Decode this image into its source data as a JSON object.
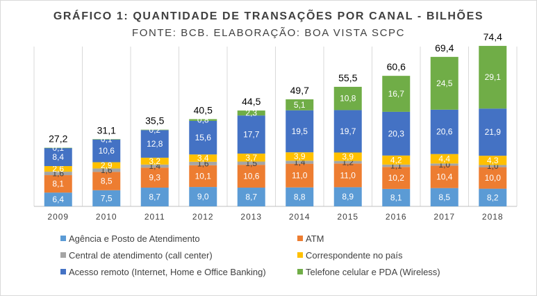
{
  "chart_data": {
    "type": "bar",
    "stacked": true,
    "title": "GRÁFICO 1: QUANTIDADE DE TRANSAÇÕES POR CANAL - BILHÕES",
    "subtitle": "FONTE: BCB. ELABORAÇÃO: BOA VISTA SCPC",
    "categories": [
      "2009",
      "2010",
      "2011",
      "2012",
      "2013",
      "2014",
      "2015",
      "2016",
      "2017",
      "2018"
    ],
    "totals": [
      "27,2",
      "31,1",
      "35,5",
      "40,5",
      "44,5",
      "49,7",
      "55,5",
      "60,6",
      "69,4",
      "74,4"
    ],
    "total_values": [
      27.2,
      31.1,
      35.5,
      40.5,
      44.5,
      49.7,
      55.5,
      60.6,
      69.4,
      74.4
    ],
    "ylim": [
      0,
      80
    ],
    "grid": true,
    "legend_position": "bottom",
    "series": [
      {
        "name": "Agência e Posto de Atendimento",
        "color": "#5b9bd5",
        "values": [
          6.4,
          7.5,
          8.7,
          9.0,
          8.7,
          8.8,
          8.9,
          8.1,
          8.5,
          8.2
        ],
        "labels": [
          "6,4",
          "7,5",
          "8,7",
          "9,0",
          "8,7",
          "8,8",
          "8,9",
          "8,1",
          "8,5",
          "8,2"
        ]
      },
      {
        "name": "ATM",
        "color": "#ed7d31",
        "values": [
          8.1,
          8.5,
          9.3,
          10.1,
          10.6,
          11.0,
          11.0,
          10.2,
          10.4,
          10.0
        ],
        "labels": [
          "8,1",
          "8,5",
          "9,3",
          "10,1",
          "10,6",
          "11,0",
          "11,0",
          "10,2",
          "10,4",
          "10,0"
        ]
      },
      {
        "name": "Central de atendimento (call center)",
        "color": "#a5a5a5",
        "values": [
          1.6,
          1.6,
          1.4,
          1.6,
          1.5,
          1.4,
          1.2,
          1.1,
          1.0,
          1.0
        ],
        "labels": [
          "1,6",
          "1,6",
          "1,4",
          "1,6",
          "1,5",
          "1,4",
          "1,2",
          "1,1",
          "1,0",
          "1,0"
        ]
      },
      {
        "name": "Correspondente no país",
        "color": "#ffc000",
        "values": [
          2.6,
          2.9,
          3.2,
          3.4,
          3.7,
          3.9,
          3.9,
          4.2,
          4.4,
          4.3
        ],
        "labels": [
          "2,6",
          "2,9",
          "3,2",
          "3,4",
          "3,7",
          "3,9",
          "3,9",
          "4,2",
          "4,4",
          "4,3"
        ]
      },
      {
        "name": "Acesso remoto (Internet, Home e Office Banking)",
        "color": "#4472c4",
        "values": [
          8.4,
          10.6,
          12.8,
          15.6,
          17.7,
          19.5,
          19.7,
          20.3,
          20.6,
          21.9
        ],
        "labels": [
          "8,4",
          "10,6",
          "12,8",
          "15,6",
          "17,7",
          "19,5",
          "19,7",
          "20,3",
          "20,6",
          "21,9"
        ]
      },
      {
        "name": "Telefone celular e PDA (Wireless)",
        "color": "#70ad47",
        "values": [
          0.1,
          0.1,
          0.2,
          0.8,
          2.3,
          5.1,
          10.8,
          16.7,
          24.5,
          29.1
        ],
        "labels": [
          "0,1",
          "0,1",
          "0,2",
          "0,8",
          "2,3",
          "5,1",
          "10,8",
          "16,7",
          "24,5",
          "29,1"
        ]
      }
    ]
  }
}
